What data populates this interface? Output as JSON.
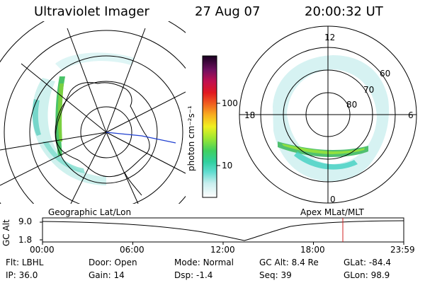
{
  "header": {
    "instrument": "Ultraviolet Imager",
    "date": "27 Aug 07",
    "time": "20:00:32 UT"
  },
  "colorbar": {
    "unit_label": "photon cm⁻²s⁻¹",
    "ticks": [
      "100",
      "10"
    ],
    "colors": [
      "#ffffff",
      "#e6e6e6",
      "#a0e6e6",
      "#40d8c8",
      "#30d0a0",
      "#40d060",
      "#80e040",
      "#c0f030",
      "#f0f020",
      "#f8c020",
      "#f89020",
      "#f05020",
      "#e01820",
      "#c01040",
      "#901060",
      "#500840",
      "#200020"
    ]
  },
  "left_map": {
    "caption": "Geographic Lat/Lon"
  },
  "right_map": {
    "caption": "Apex MLat/MLT",
    "mlt_labels": {
      "top": "12",
      "left": "18",
      "right": "6",
      "bottom": "0"
    },
    "lat_labels": [
      "60",
      "70",
      "80"
    ]
  },
  "altitude_plot": {
    "y_axis_label": "GC Alt",
    "y_ticks": [
      "9.0",
      "1.8"
    ],
    "x_ticks": [
      "00:00",
      "06:00",
      "12:00",
      "18:00",
      "23:59"
    ],
    "current_time_marker_color": "#d02020"
  },
  "status": {
    "row1": [
      {
        "key": "Flt:",
        "value": "LBHL"
      },
      {
        "key": "Door:",
        "value": "Open"
      },
      {
        "key": "Mode:",
        "value": "Normal"
      },
      {
        "key": "GC Alt:",
        "value": "8.4 Re"
      },
      {
        "key": "GLat:",
        "value": "-84.4"
      }
    ],
    "row2": [
      {
        "key": "IP:",
        "value": "36.0"
      },
      {
        "key": "Gain:",
        "value": "14"
      },
      {
        "key": "Dsp:",
        "value": "-1.4"
      },
      {
        "key": "Seq:",
        "value": "39"
      },
      {
        "key": "GLon:",
        "value": "98.9"
      }
    ]
  }
}
